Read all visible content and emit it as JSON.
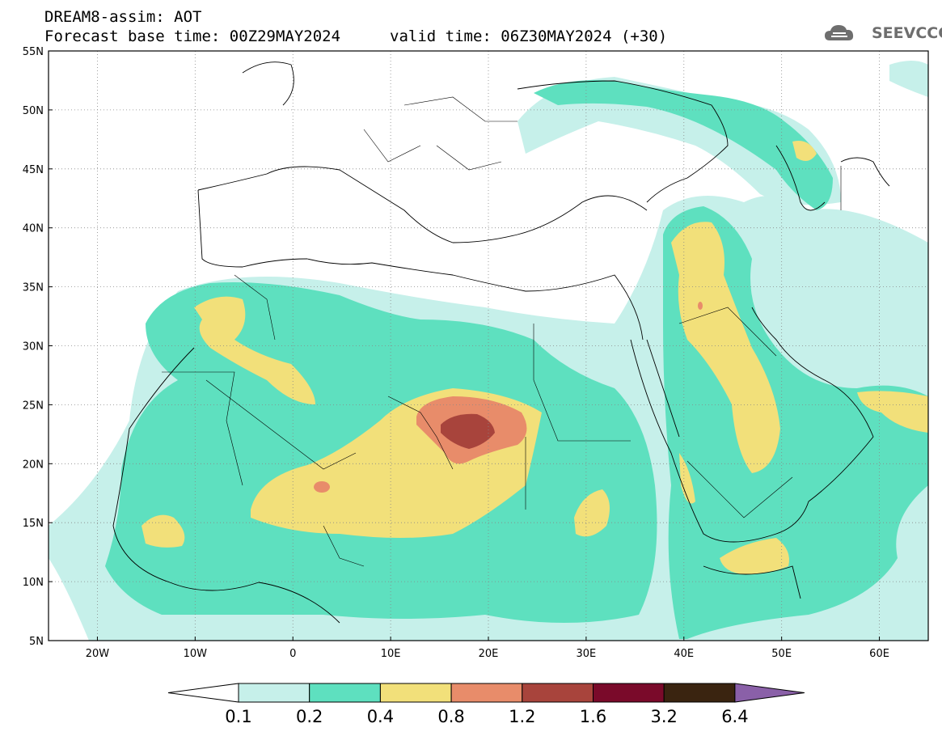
{
  "header": {
    "line1": "DREAM8-assim: AOT",
    "line2": "Forecast base time: 00Z29MAY2024",
    "valid": "valid time: 06Z30MAY2024 (+30)"
  },
  "logo": {
    "text": "SEEVCCC",
    "icon": "cloud-logo-icon"
  },
  "map": {
    "lat_labels": [
      "55N",
      "50N",
      "45N",
      "40N",
      "35N",
      "30N",
      "25N",
      "20N",
      "15N",
      "10N",
      "5N"
    ],
    "lon_labels": [
      "20W",
      "10W",
      "0",
      "10E",
      "20E",
      "30E",
      "40E",
      "50E",
      "60E"
    ],
    "lon_range": [
      -25,
      65
    ],
    "lat_range": [
      5,
      55
    ],
    "grid": "dotted"
  },
  "colorbar": {
    "levels": [
      "0.1",
      "0.2",
      "0.4",
      "0.8",
      "1.2",
      "1.6",
      "3.2",
      "6.4"
    ],
    "colors": [
      "#ffffff",
      "#c6f0ea",
      "#5ee0bf",
      "#f2e07a",
      "#e88c6a",
      "#a8443c",
      "#7a0a2a",
      "#3a2410",
      "#8a60a8"
    ]
  },
  "palette": {
    "c1": "#c6f0ea",
    "c2": "#5ee0bf",
    "c3": "#f2e07a",
    "c4": "#e88c6a",
    "c5": "#a8443c",
    "c6": "#7a0a2a"
  }
}
